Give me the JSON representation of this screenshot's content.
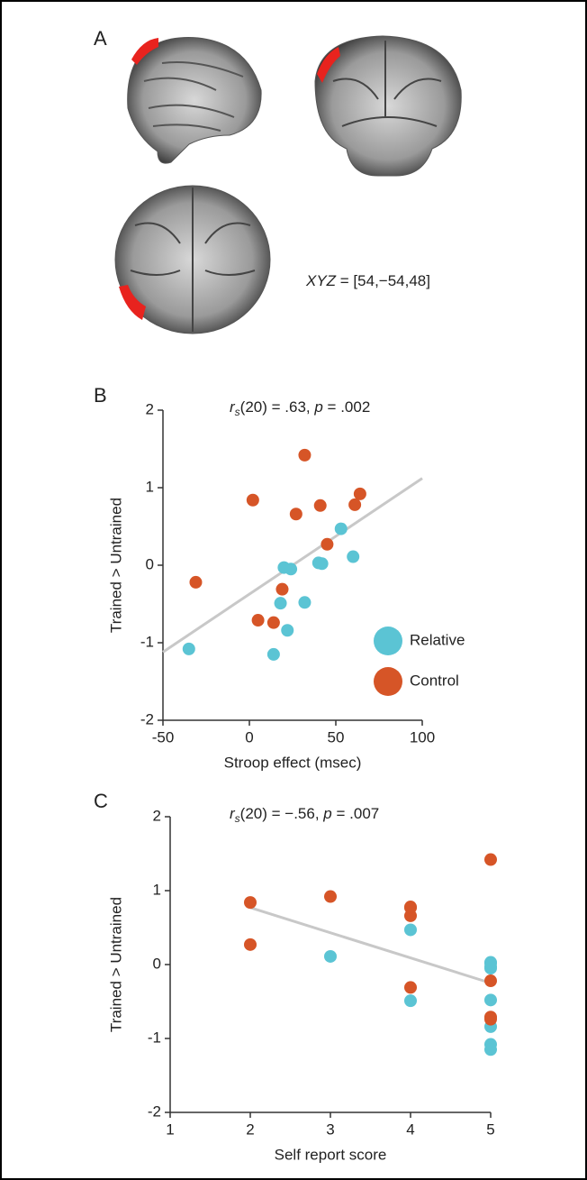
{
  "panel_a": {
    "label": "A",
    "coords": [
      "XYZ",
      " = [54,−54,48]"
    ]
  },
  "chart_data": [
    {
      "type": "scatter",
      "panel": "B",
      "title": [
        "r",
        "s",
        "(20) = .63, ",
        "p",
        " = .002"
      ],
      "x_label": "Stroop effect (msec)",
      "y_label": "Trained > Untrained",
      "xlim": [
        -50,
        100
      ],
      "xticks": [
        -50,
        0,
        50,
        100
      ],
      "ylim": [
        -2,
        2
      ],
      "yticks": [
        -2,
        -1,
        0,
        1,
        2
      ],
      "legend": "lower right",
      "series": [
        {
          "name": "Relative",
          "color": "#5bc4d4",
          "x": [
            -35,
            18,
            20,
            22,
            24,
            14,
            32,
            40,
            42,
            53,
            60
          ],
          "values": [
            -1.08,
            -0.49,
            -0.03,
            -0.84,
            -0.05,
            -1.15,
            -0.48,
            0.03,
            0.02,
            0.47,
            0.11
          ]
        },
        {
          "name": "Control",
          "color": "#d65527",
          "x": [
            -31,
            2,
            5,
            14,
            19,
            27,
            32,
            41,
            45,
            61,
            64
          ],
          "values": [
            -0.22,
            0.84,
            -0.71,
            -0.74,
            -0.31,
            0.66,
            1.42,
            0.77,
            0.27,
            0.78,
            0.92
          ]
        }
      ],
      "fit": {
        "color": "#c8c8c8",
        "x": [
          -50,
          100
        ],
        "values": [
          -1.12,
          1.12
        ]
      }
    },
    {
      "type": "scatter",
      "panel": "C",
      "title": [
        "r",
        "s",
        "(20) = −.56, ",
        "p",
        " = .007"
      ],
      "x_label": "Self report score",
      "y_label": "Trained > Untrained",
      "xlim": [
        1,
        5
      ],
      "xticks": [
        1,
        2,
        3,
        4,
        5
      ],
      "ylim": [
        -2,
        2
      ],
      "yticks": [
        -2,
        -1,
        0,
        1,
        2
      ],
      "series": [
        {
          "color": "#5bc4d4",
          "x": [
            5,
            4,
            5,
            5,
            5,
            5,
            5,
            5,
            5,
            4,
            3
          ],
          "values": [
            -1.08,
            -0.49,
            -0.03,
            -0.84,
            -0.05,
            -1.15,
            -0.48,
            0.03,
            0.02,
            0.47,
            0.11
          ]
        },
        {
          "color": "#d65527",
          "x": [
            5,
            2,
            5,
            5,
            4,
            4,
            5,
            4,
            2,
            4,
            3
          ],
          "values": [
            -0.22,
            0.84,
            -0.71,
            -0.74,
            -0.31,
            0.66,
            1.42,
            0.77,
            0.27,
            0.78,
            0.92
          ]
        }
      ],
      "fit": {
        "color": "#c8c8c8",
        "x": [
          2,
          5
        ],
        "values": [
          0.77,
          -0.25
        ]
      }
    }
  ]
}
